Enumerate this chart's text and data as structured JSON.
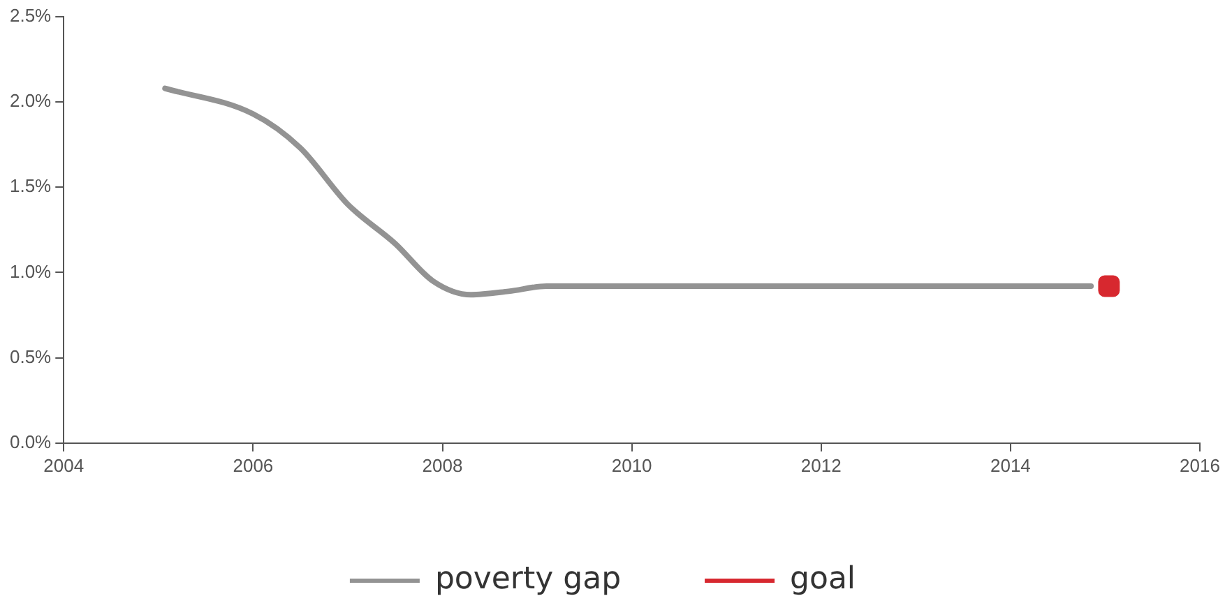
{
  "chart_data": {
    "type": "line",
    "x": [
      2005.07,
      2006,
      2006.5,
      2007,
      2007.5,
      2007.9,
      2008.3,
      2008.7,
      2009.1,
      2010,
      2012,
      2014,
      2014.85
    ],
    "series": [
      {
        "name": "poverty gap",
        "color": "#939393",
        "values": [
          2.08,
          1.93,
          1.73,
          1.4,
          1.17,
          0.95,
          0.87,
          0.89,
          0.92,
          0.92,
          0.92,
          0.92,
          0.92
        ],
        "marker": "none"
      },
      {
        "name": "goal",
        "type": "scatter",
        "color": "#d7282f",
        "x": [
          2015.04
        ],
        "values": [
          0.92
        ],
        "marker": "square"
      }
    ],
    "xlim": [
      2004,
      2016
    ],
    "xticks": [
      2004,
      2006,
      2008,
      2010,
      2012,
      2014,
      2016
    ],
    "ylim": [
      0,
      2.5
    ],
    "yticks": [
      {
        "value": 0,
        "label": "0.0%"
      },
      {
        "value": 0.5,
        "label": "0.5%"
      },
      {
        "value": 1,
        "label": "1.0%"
      },
      {
        "value": 1.5,
        "label": "1.5%"
      },
      {
        "value": 2,
        "label": "2.0%"
      },
      {
        "value": 2.5,
        "label": "2.5%"
      }
    ],
    "grid": false,
    "legend": "bottom"
  }
}
